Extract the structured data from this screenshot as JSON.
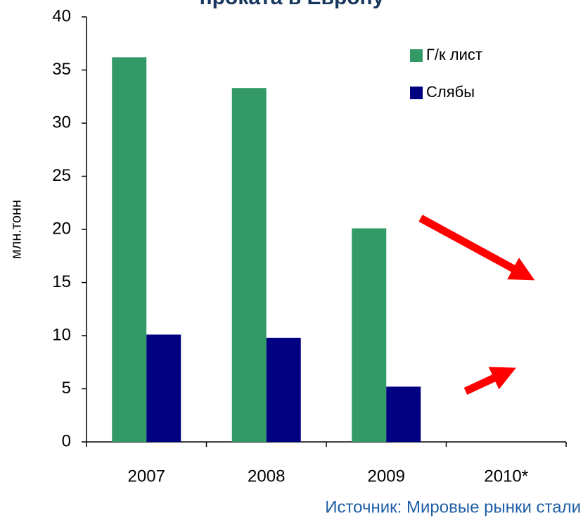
{
  "chart_data": {
    "type": "bar",
    "title": "проката в Европу",
    "categories": [
      "2007",
      "2008",
      "2009",
      "2010*"
    ],
    "series": [
      {
        "name": "Г/к лист",
        "color": "#339966",
        "values": [
          36.2,
          33.3,
          20.1,
          null
        ]
      },
      {
        "name": "Слябы",
        "color": "#000080",
        "values": [
          10.1,
          9.8,
          5.2,
          null
        ]
      }
    ],
    "ylabel": "млн.тонн",
    "ylim": [
      0,
      40
    ],
    "yticks": [
      0,
      5,
      10,
      15,
      20,
      25,
      30,
      35,
      40
    ],
    "source": "Источник: Мировые рынки стали"
  }
}
